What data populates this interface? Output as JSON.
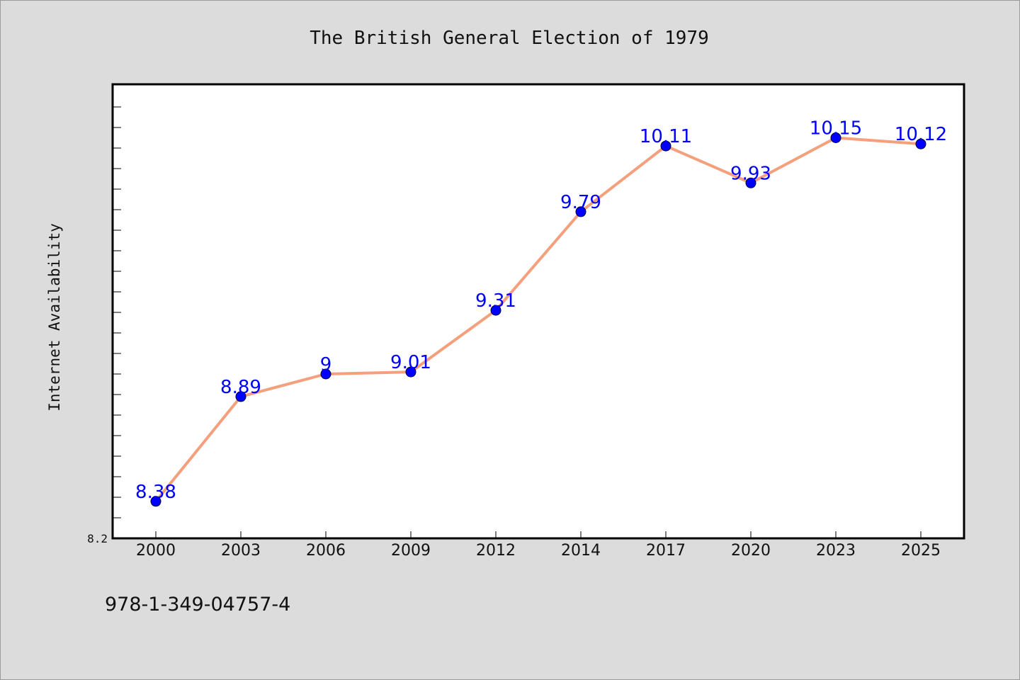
{
  "chart_data": {
    "type": "line",
    "title": "The British General Election of 1979",
    "xlabel": "",
    "ylabel": "Internet Availability",
    "categories": [
      "2000",
      "2003",
      "2006",
      "2009",
      "2012",
      "2014",
      "2017",
      "2020",
      "2023",
      "2025"
    ],
    "series": [
      {
        "values": [
          8.38,
          8.89,
          9,
          9.01,
          9.31,
          9.79,
          10.11,
          9.93,
          10.15,
          10.12
        ],
        "labels": [
          "8.38",
          "8.89",
          "9",
          "9.01",
          "9.31",
          "9.79",
          "10.11",
          "9.93",
          "10.15",
          "10.12"
        ],
        "line_color": "#f4a07c",
        "marker_color": "#0000ff"
      }
    ],
    "ylim": [
      8.2,
      10.4
    ],
    "y_tick_labels": [
      "8.2"
    ],
    "grid": false,
    "legend": "none"
  },
  "footnote": "978-1-349-04757-4",
  "colors": {
    "background": "#dcdcdc",
    "plot_background": "#ffffff",
    "line": "#f4a07c",
    "marker": "#0000ff",
    "data_label": "#0000ff"
  }
}
